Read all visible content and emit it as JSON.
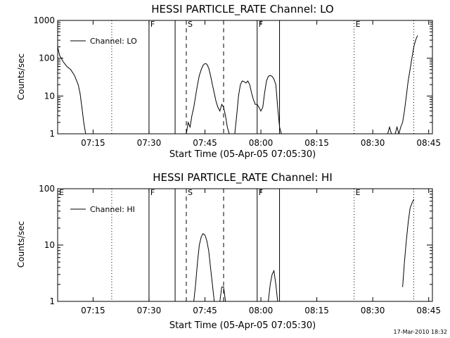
{
  "footer": {
    "timestamp": "17-Mar-2010 18:32"
  },
  "chart_data": [
    {
      "type": "line",
      "title": "HESSI PARTICLE_RATE Channel: LO",
      "xlabel": "Start Time (05-Apr-05 07:05:30)",
      "ylabel": "Counts/sec",
      "yscale": "log",
      "xlim": [
        "07:05:30",
        "08:46:00"
      ],
      "ylim": [
        1,
        1000
      ],
      "xticks": [
        "07:15",
        "07:30",
        "07:45",
        "08:00",
        "08:15",
        "08:30",
        "08:45"
      ],
      "yticks": [
        "1",
        "10",
        "100",
        "1000"
      ],
      "legend": {
        "label": "Channel: LO",
        "placement": "top-left"
      },
      "markers": [
        {
          "label": "",
          "x": "07:20",
          "style": "dotted"
        },
        {
          "label": "F",
          "x": "07:30",
          "style": "solid"
        },
        {
          "label": "",
          "x": "07:37",
          "style": "solid"
        },
        {
          "label": "S",
          "x": "07:40",
          "style": "dashed"
        },
        {
          "label": "",
          "x": "07:50",
          "style": "dashed"
        },
        {
          "label": "F",
          "x": "07:59",
          "style": "solid"
        },
        {
          "label": "",
          "x": "08:05",
          "style": "solid"
        },
        {
          "label": "E",
          "x": "08:25",
          "style": "dotted"
        },
        {
          "label": "",
          "x": "08:41",
          "style": "dotted"
        }
      ],
      "series": [
        {
          "name": "Channel: LO",
          "segments": [
            [
              [
                "07:05:30",
                200
              ],
              [
                "07:06:00",
                120
              ],
              [
                "07:07:00",
                80
              ],
              [
                "07:08:00",
                60
              ],
              [
                "07:09:00",
                50
              ],
              [
                "07:10:00",
                35
              ],
              [
                "07:11:00",
                20
              ],
              [
                "07:11:30",
                12
              ],
              [
                "07:12:00",
                5
              ],
              [
                "07:12:30",
                2
              ],
              [
                "07:13:00",
                1
              ]
            ],
            [
              [
                "07:40:00",
                1
              ],
              [
                "07:40:30",
                2
              ],
              [
                "07:41:00",
                1.5
              ],
              [
                "07:41:30",
                3
              ],
              [
                "07:42:00",
                5
              ],
              [
                "07:42:30",
                10
              ],
              [
                "07:43:00",
                20
              ],
              [
                "07:43:30",
                35
              ],
              [
                "07:44:00",
                50
              ],
              [
                "07:44:30",
                65
              ],
              [
                "07:45:00",
                72
              ],
              [
                "07:45:30",
                70
              ],
              [
                "07:46:00",
                55
              ],
              [
                "07:46:30",
                35
              ],
              [
                "07:47:00",
                20
              ],
              [
                "07:47:30",
                12
              ],
              [
                "07:48:00",
                7
              ],
              [
                "07:48:30",
                5
              ],
              [
                "07:49:00",
                4
              ],
              [
                "07:49:30",
                6
              ],
              [
                "07:50:00",
                5
              ],
              [
                "07:50:30",
                3
              ],
              [
                "07:51:00",
                1.5
              ],
              [
                "07:51:30",
                1
              ]
            ],
            [
              [
                "07:53:00",
                1
              ],
              [
                "07:53:30",
                3
              ],
              [
                "07:54:00",
                10
              ],
              [
                "07:54:30",
                20
              ],
              [
                "07:55:00",
                25
              ],
              [
                "07:55:30",
                24
              ],
              [
                "07:56:00",
                22
              ],
              [
                "07:56:30",
                25
              ],
              [
                "07:57:00",
                20
              ],
              [
                "07:57:30",
                12
              ],
              [
                "07:58:00",
                8
              ],
              [
                "07:58:30",
                6
              ],
              [
                "07:59:00",
                6
              ],
              [
                "07:59:30",
                5
              ],
              [
                "08:00:00",
                4
              ],
              [
                "08:00:30",
                5
              ],
              [
                "08:01:00",
                12
              ],
              [
                "08:01:30",
                25
              ],
              [
                "08:02:00",
                33
              ],
              [
                "08:02:30",
                35
              ],
              [
                "08:03:00",
                33
              ],
              [
                "08:03:30",
                28
              ],
              [
                "08:04:00",
                20
              ],
              [
                "08:04:30",
                5
              ],
              [
                "08:05:00",
                1.5
              ],
              [
                "08:05:30",
                1
              ]
            ],
            [
              [
                "08:34:00",
                1
              ],
              [
                "08:34:30",
                1.5
              ],
              [
                "08:35:00",
                1
              ]
            ],
            [
              [
                "08:36:00",
                1
              ],
              [
                "08:36:30",
                1.5
              ],
              [
                "08:37:00",
                1
              ],
              [
                "08:37:30",
                1.5
              ],
              [
                "08:38:00",
                2
              ],
              [
                "08:38:30",
                4
              ],
              [
                "08:39:00",
                10
              ],
              [
                "08:39:30",
                25
              ],
              [
                "08:40:00",
                50
              ],
              [
                "08:40:30",
                100
              ],
              [
                "08:41:00",
                200
              ],
              [
                "08:41:30",
                300
              ],
              [
                "08:42:00",
                400
              ]
            ]
          ]
        }
      ]
    },
    {
      "type": "line",
      "title": "HESSI PARTICLE_RATE Channel: HI",
      "xlabel": "Start Time (05-Apr-05 07:05:30)",
      "ylabel": "Counts/sec",
      "yscale": "log",
      "xlim": [
        "07:05:30",
        "08:46:00"
      ],
      "ylim": [
        1,
        100
      ],
      "xticks": [
        "07:15",
        "07:30",
        "07:45",
        "08:00",
        "08:15",
        "08:30",
        "08:45"
      ],
      "yticks": [
        "1",
        "10",
        "100"
      ],
      "legend": {
        "label": "Channel: HI",
        "placement": "top-left"
      },
      "markers": [
        {
          "label": "E",
          "x": "07:05:30",
          "style": "none"
        },
        {
          "label": "",
          "x": "07:20",
          "style": "dotted"
        },
        {
          "label": "F",
          "x": "07:30",
          "style": "solid"
        },
        {
          "label": "",
          "x": "07:37",
          "style": "solid"
        },
        {
          "label": "S",
          "x": "07:40",
          "style": "dashed"
        },
        {
          "label": "",
          "x": "07:50",
          "style": "dashed"
        },
        {
          "label": "F",
          "x": "07:59",
          "style": "solid"
        },
        {
          "label": "",
          "x": "08:05",
          "style": "solid"
        },
        {
          "label": "E",
          "x": "08:25",
          "style": "dotted"
        },
        {
          "label": "",
          "x": "08:41",
          "style": "dotted"
        }
      ],
      "series": [
        {
          "name": "Channel: HI",
          "segments": [
            [
              [
                "07:42:00",
                1
              ],
              [
                "07:42:30",
                2
              ],
              [
                "07:43:00",
                5
              ],
              [
                "07:43:30",
                10
              ],
              [
                "07:44:00",
                14
              ],
              [
                "07:44:30",
                16
              ],
              [
                "07:45:00",
                15
              ],
              [
                "07:45:30",
                12
              ],
              [
                "07:46:00",
                8
              ],
              [
                "07:46:30",
                4
              ],
              [
                "07:47:00",
                2
              ],
              [
                "07:47:30",
                1
              ]
            ],
            [
              [
                "07:49:00",
                1
              ],
              [
                "07:49:30",
                1.8
              ],
              [
                "07:50:00",
                1.8
              ],
              [
                "07:50:30",
                1
              ]
            ],
            [
              [
                "08:02:00",
                1
              ],
              [
                "08:02:30",
                2
              ],
              [
                "08:03:00",
                3
              ],
              [
                "08:03:30",
                3.5
              ],
              [
                "08:04:00",
                2
              ],
              [
                "08:04:30",
                1
              ]
            ],
            [
              [
                "08:38:00",
                1.8
              ],
              [
                "08:38:30",
                5
              ],
              [
                "08:39:00",
                12
              ],
              [
                "08:39:30",
                25
              ],
              [
                "08:40:00",
                45
              ],
              [
                "08:40:30",
                55
              ],
              [
                "08:41:00",
                65
              ]
            ]
          ]
        }
      ]
    }
  ]
}
